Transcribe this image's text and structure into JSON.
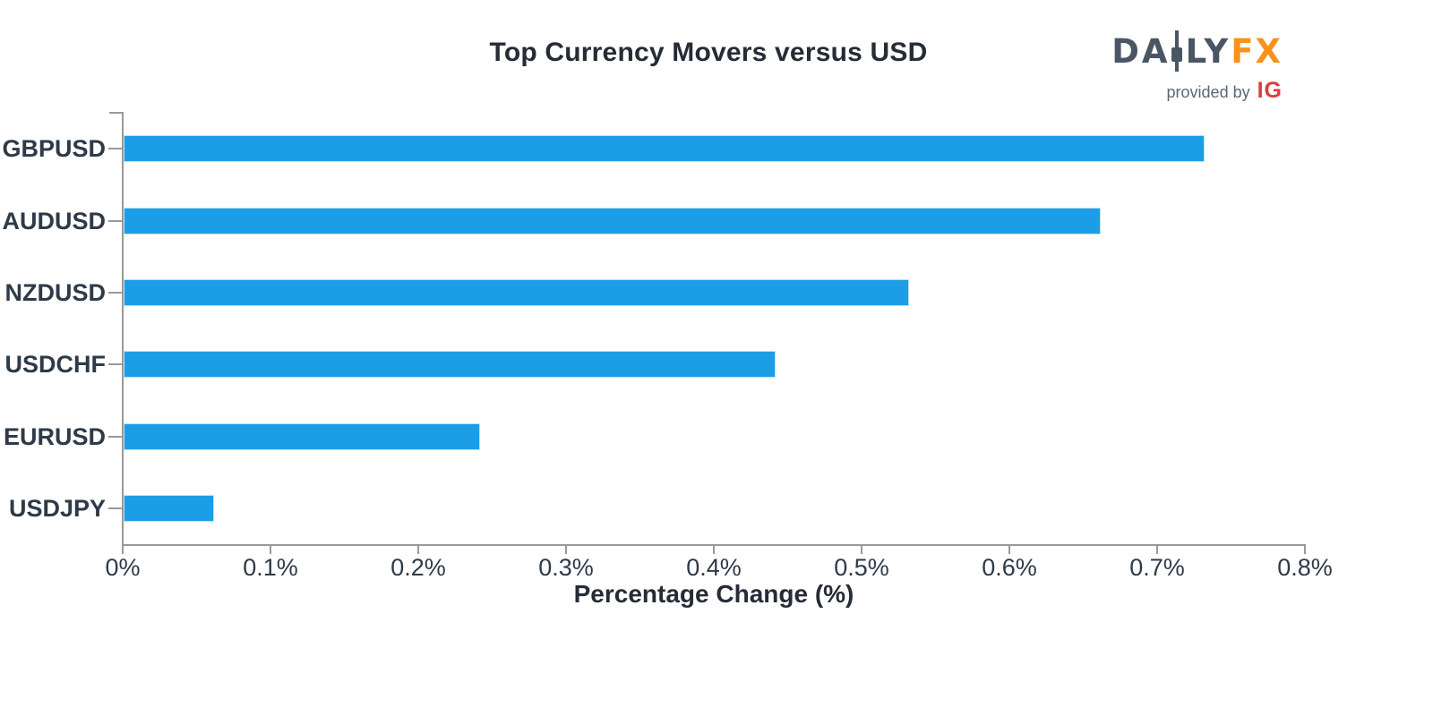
{
  "title": "Top Currency Movers versus USD",
  "logo": {
    "brand_part1": "DA",
    "brand_part2": "LY",
    "brand_part3": "FX",
    "tagline": "provided by",
    "provider": "IG"
  },
  "chart_data": {
    "type": "bar",
    "orientation": "horizontal",
    "title": "Top Currency Movers versus USD",
    "categories": [
      "GBPUSD",
      "AUDUSD",
      "NZDUSD",
      "USDCHF",
      "EURUSD",
      "USDJPY"
    ],
    "values": [
      0.73,
      0.66,
      0.53,
      0.44,
      0.24,
      0.06
    ],
    "value_unit": "%",
    "xlabel": "Percentage Change (%)",
    "ylabel": "",
    "xlim": [
      0,
      0.8
    ],
    "x_ticks": [
      0,
      0.1,
      0.2,
      0.3,
      0.4,
      0.5,
      0.6,
      0.7,
      0.8
    ],
    "x_tick_labels": [
      "0%",
      "0.1%",
      "0.2%",
      "0.3%",
      "0.4%",
      "0.5%",
      "0.6%",
      "0.7%",
      "0.8%"
    ],
    "grid": false,
    "legend": false,
    "colors": {
      "bar": "#1C9EE6",
      "bar_edge": "#BEE3F8",
      "axis": "#999999",
      "tick_label": "#2E3A48",
      "title": "#262C36"
    }
  }
}
